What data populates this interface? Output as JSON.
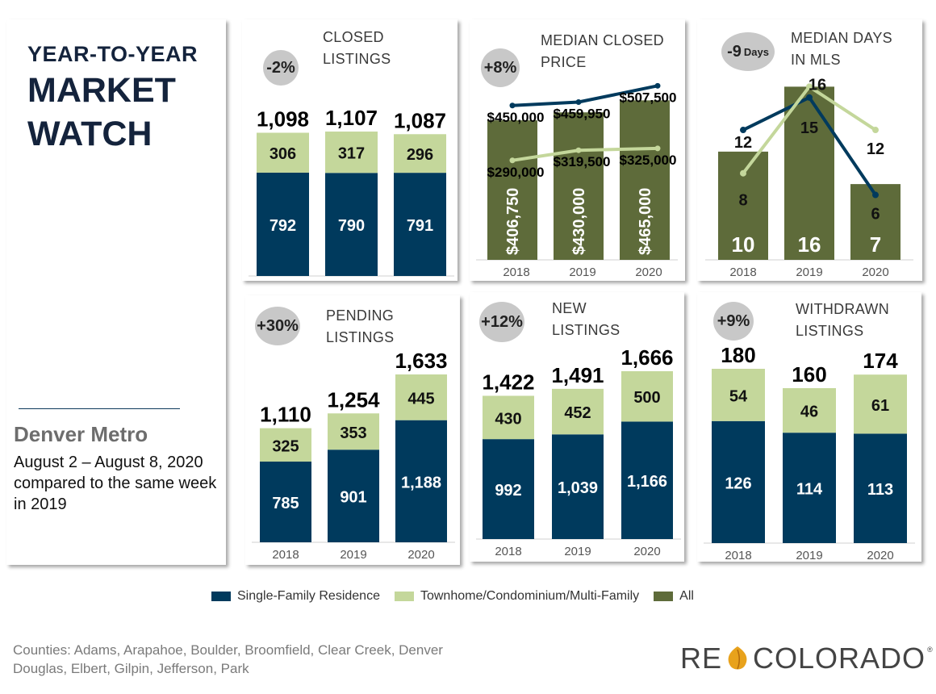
{
  "header": {
    "line1": "YEAR-TO-YEAR",
    "line2": "MARKET",
    "line3": "WATCH",
    "region": "Denver Metro",
    "period": "August 2 – August 8, 2020 compared to the same week in 2019"
  },
  "colors": {
    "sfr": "#003a5d",
    "condo": "#c4d79b",
    "all": "#5e6b3a",
    "badge": "#c8c8c8"
  },
  "legend": [
    {
      "label": "Single-Family Residence",
      "color": "#003a5d"
    },
    {
      "label": "Townhome/Condominium/Multi-Family",
      "color": "#c4d79b"
    },
    {
      "label": "All",
      "color": "#5e6b3a"
    }
  ],
  "footer": {
    "counties": "Counties:  Adams, Arapahoe, Boulder, Broomfield, Clear Creek, Denver\nDouglas, Elbert, Gilpin, Jefferson, Park",
    "logo_left": "RE",
    "logo_right": "COLORADO",
    "logo_mark": "®"
  },
  "cards": {
    "closed": {
      "title": "CLOSED\nLISTINGS",
      "badge": "-2%"
    },
    "price": {
      "title": "MEDIAN CLOSED\nPRICE",
      "badge": "+8%"
    },
    "days": {
      "title": "MEDIAN DAYS\nIN MLS",
      "badge": "-9",
      "badge_unit": "Days"
    },
    "pending": {
      "title": "PENDING\nLISTINGS",
      "badge": "+30%"
    },
    "new": {
      "title": "NEW\nLISTINGS",
      "badge": "+12%"
    },
    "withdrawn": {
      "title": "WITHDRAWN\nLISTINGS",
      "badge": "+9%"
    }
  },
  "chart_data": [
    {
      "id": "closed",
      "type": "bar",
      "stacked": true,
      "title": "CLOSED LISTINGS",
      "categories": [
        "2018",
        "2019",
        "2020"
      ],
      "series": [
        {
          "name": "Single-Family Residence",
          "values": [
            792,
            790,
            791
          ]
        },
        {
          "name": "Townhome/Condominium/Multi-Family",
          "values": [
            306,
            317,
            296
          ]
        }
      ],
      "totals": [
        "1,098",
        "1,107",
        "1,087"
      ],
      "value_labels": [
        [
          "792",
          "790",
          "791"
        ],
        [
          "306",
          "317",
          "296"
        ]
      ],
      "ylim": [
        0,
        1200
      ]
    },
    {
      "id": "price",
      "type": "bar",
      "title": "MEDIAN CLOSED PRICE",
      "categories": [
        "2018",
        "2019",
        "2020"
      ],
      "series": [
        {
          "name": "All",
          "type": "bar",
          "values": [
            406750,
            430000,
            465000
          ],
          "labels": [
            "$406,750",
            "$430,000",
            "$465,000"
          ]
        },
        {
          "name": "Single-Family Residence",
          "type": "line",
          "values": [
            450000,
            459950,
            507500
          ],
          "labels": [
            "$450,000",
            "$459,950",
            "$507,500"
          ]
        },
        {
          "name": "Townhome/Condominium/Multi-Family",
          "type": "line",
          "values": [
            290000,
            319500,
            325000
          ],
          "labels": [
            "$290,000",
            "$319,500",
            "$325,000"
          ]
        }
      ],
      "ylim": [
        0,
        560000
      ]
    },
    {
      "id": "days",
      "type": "bar",
      "title": "MEDIAN DAYS IN MLS",
      "categories": [
        "2018",
        "2019",
        "2020"
      ],
      "series": [
        {
          "name": "All",
          "type": "bar",
          "values": [
            10,
            16,
            7
          ],
          "labels": [
            "10",
            "16",
            "7"
          ]
        },
        {
          "name": "Single-Family Residence",
          "type": "line",
          "values": [
            12,
            15,
            6
          ],
          "labels": [
            "12",
            "15",
            "6"
          ]
        },
        {
          "name": "Townhome/Condominium/Multi-Family",
          "type": "line",
          "values": [
            8,
            16,
            12
          ],
          "labels": [
            "8",
            "16",
            "12"
          ]
        }
      ],
      "ylim": [
        0,
        17
      ]
    },
    {
      "id": "pending",
      "type": "bar",
      "stacked": true,
      "title": "PENDING LISTINGS",
      "categories": [
        "2018",
        "2019",
        "2020"
      ],
      "series": [
        {
          "name": "Single-Family Residence",
          "values": [
            785,
            901,
            1188
          ]
        },
        {
          "name": "Townhome/Condominium/Multi-Family",
          "values": [
            325,
            353,
            445
          ]
        }
      ],
      "totals": [
        "1,110",
        "1,254",
        "1,633"
      ],
      "value_labels": [
        [
          "785",
          "901",
          "1,188"
        ],
        [
          "325",
          "353",
          "445"
        ]
      ],
      "ylim": [
        0,
        1633
      ]
    },
    {
      "id": "new",
      "type": "bar",
      "stacked": true,
      "title": "NEW LISTINGS",
      "categories": [
        "2018",
        "2019",
        "2020"
      ],
      "series": [
        {
          "name": "Single-Family Residence",
          "values": [
            992,
            1039,
            1166
          ]
        },
        {
          "name": "Townhome/Condominium/Multi-Family",
          "values": [
            430,
            452,
            500
          ]
        }
      ],
      "totals": [
        "1,422",
        "1,491",
        "1,666"
      ],
      "value_labels": [
        [
          "992",
          "1,039",
          "1,166"
        ],
        [
          "430",
          "452",
          "500"
        ]
      ],
      "ylim": [
        0,
        1666
      ]
    },
    {
      "id": "withdrawn",
      "type": "bar",
      "stacked": true,
      "title": "WITHDRAWN LISTINGS",
      "categories": [
        "2018",
        "2019",
        "2020"
      ],
      "series": [
        {
          "name": "Single-Family Residence",
          "values": [
            126,
            114,
            113
          ]
        },
        {
          "name": "Townhome/Condominium/Multi-Family",
          "values": [
            54,
            46,
            61
          ]
        }
      ],
      "totals": [
        "180",
        "160",
        "174"
      ],
      "value_labels": [
        [
          "126",
          "114",
          "113"
        ],
        [
          "54",
          "46",
          "61"
        ]
      ],
      "ylim": [
        0,
        180
      ]
    }
  ]
}
